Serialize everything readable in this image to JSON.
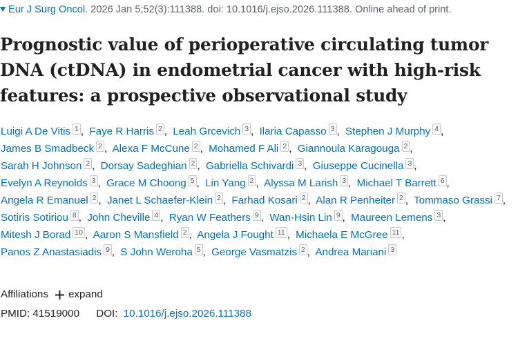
{
  "citation": {
    "journal": "Eur J Surg Oncol.",
    "details": "2026 Jan 5;52(3):111388. doi: 10.1016/j.ejso.2026.111388. Online ahead of print."
  },
  "title": "Prognostic value of perioperative circulating tumor DNA (ctDNA) in endometrial cancer with high-risk features: a prospective observational study",
  "authors": [
    {
      "name": "Luigi A De Vitis",
      "aff": "1"
    },
    {
      "name": "Faye R Harris",
      "aff": "2"
    },
    {
      "name": "Leah Grcevich",
      "aff": "3"
    },
    {
      "name": "Ilaria Capasso",
      "aff": "3"
    },
    {
      "name": "Stephen J Murphy",
      "aff": "4"
    },
    {
      "name": "James B Smadbeck",
      "aff": "2"
    },
    {
      "name": "Alexa F McCune",
      "aff": "2"
    },
    {
      "name": "Mohamed F Ali",
      "aff": "2"
    },
    {
      "name": "Giannoula Karagouga",
      "aff": "2"
    },
    {
      "name": "Sarah H Johnson",
      "aff": "2"
    },
    {
      "name": "Dorsay Sadeghian",
      "aff": "2"
    },
    {
      "name": "Gabriella Schivardi",
      "aff": "3"
    },
    {
      "name": "Giuseppe Cucinella",
      "aff": "3"
    },
    {
      "name": "Evelyn A Reynolds",
      "aff": "3"
    },
    {
      "name": "Grace M Choong",
      "aff": "5"
    },
    {
      "name": "Lin Yang",
      "aff": "2"
    },
    {
      "name": "Alyssa M Larish",
      "aff": "3"
    },
    {
      "name": "Michael T Barrett",
      "aff": "6"
    },
    {
      "name": "Angela R Emanuel",
      "aff": "2"
    },
    {
      "name": "Janet L Schaefer-Klein",
      "aff": "2"
    },
    {
      "name": "Farhad Kosari",
      "aff": "2"
    },
    {
      "name": "Alan R Penheiter",
      "aff": "2"
    },
    {
      "name": "Tommaso Grassi",
      "aff": "7"
    },
    {
      "name": "Sotiris Sotiriou",
      "aff": "8"
    },
    {
      "name": "John Cheville",
      "aff": "4"
    },
    {
      "name": "Ryan W Feathers",
      "aff": "9"
    },
    {
      "name": "Wan-Hsin Lin",
      "aff": "9"
    },
    {
      "name": "Maureen Lemens",
      "aff": "3"
    },
    {
      "name": "Mitesh J Borad",
      "aff": "10"
    },
    {
      "name": "Aaron S Mansfield",
      "aff": "2"
    },
    {
      "name": "Angela J Fought",
      "aff": "11"
    },
    {
      "name": "Michaela E McGree",
      "aff": "11"
    },
    {
      "name": "Panos Z Anastasiadis",
      "aff": "9"
    },
    {
      "name": "S John Weroha",
      "aff": "5"
    },
    {
      "name": "George Vasmatzis",
      "aff": "2"
    },
    {
      "name": "Andrea Mariani",
      "aff": "3"
    }
  ],
  "affiliations": {
    "label": "Affiliations",
    "toggle": "expand"
  },
  "ids": {
    "pmid_label": "PMID:",
    "pmid": "41519000",
    "doi_label": "DOI:",
    "doi": "10.1016/j.ejso.2026.111388"
  },
  "colors": {
    "link": "#0071bc",
    "text": "#212121"
  },
  "icons": [
    "dropdown-caret-icon",
    "plus-icon"
  ]
}
